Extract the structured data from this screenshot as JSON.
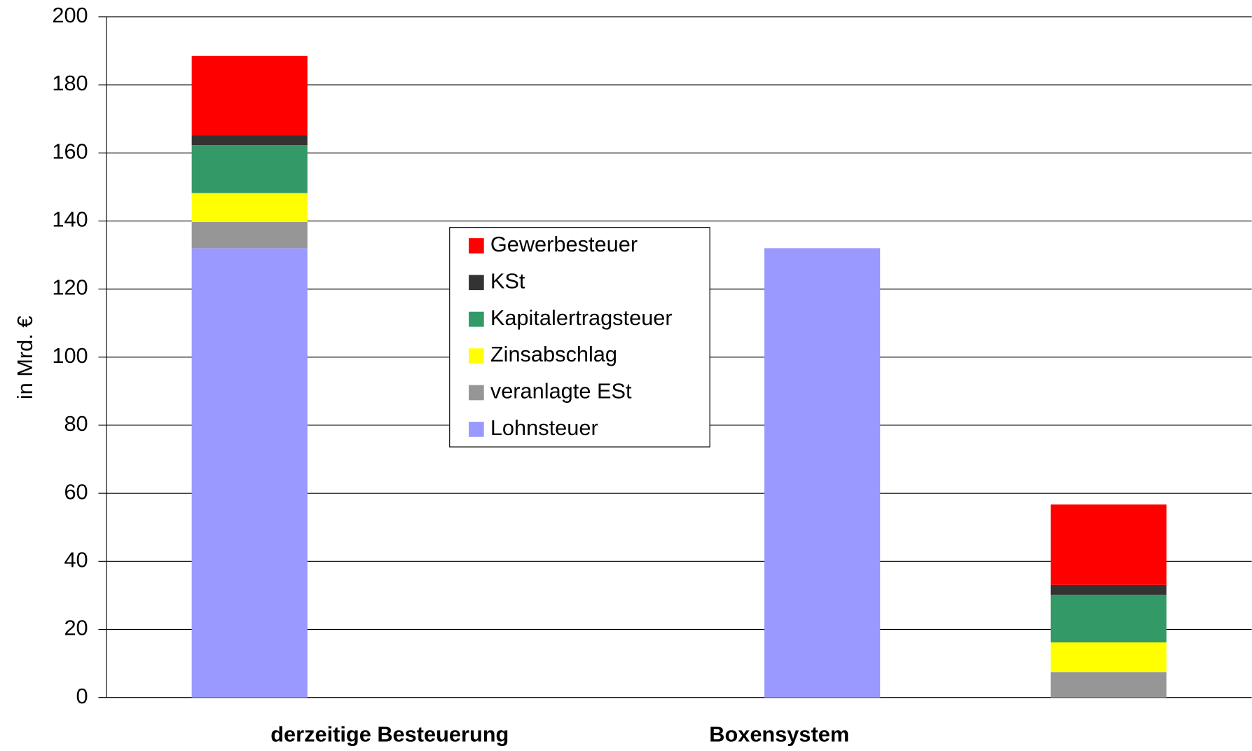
{
  "chart_data": {
    "type": "stacked_bar",
    "y_axis_label": "in Mrd. €",
    "categories": [
      "derzeitige Besteuerung",
      null,
      "Boxensystem",
      null
    ],
    "series": [
      {
        "name": "Lohnsteuer",
        "color": "#9999ff",
        "values": [
          132.0,
          null,
          132.0,
          null
        ]
      },
      {
        "name": "veranlagte ESt",
        "color": "#969696",
        "values": [
          7.7,
          null,
          null,
          7.5
        ]
      },
      {
        "name": "Zinsabschlag",
        "color": "#ffff00",
        "values": [
          8.5,
          null,
          null,
          8.7
        ]
      },
      {
        "name": "Kapitalertragsteuer",
        "color": "#339966",
        "values": [
          14.1,
          null,
          null,
          14.0
        ]
      },
      {
        "name": "KSt",
        "color": "#333333",
        "values": [
          2.8,
          null,
          null,
          2.9
        ]
      },
      {
        "name": "Gewerbesteuer",
        "color": "#ff0000",
        "values": [
          23.4,
          null,
          null,
          23.6
        ]
      }
    ],
    "ylim": [
      0,
      200
    ],
    "yticks": [
      0,
      20,
      40,
      60,
      80,
      100,
      120,
      140,
      160,
      180,
      200
    ],
    "grid": true
  }
}
